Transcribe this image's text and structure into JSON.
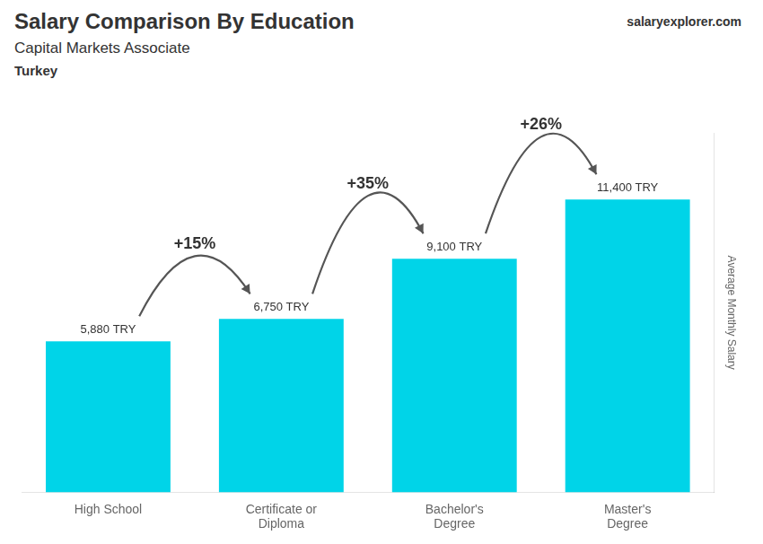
{
  "chart_data": {
    "type": "bar",
    "title": "Salary Comparison By Education",
    "subtitle": "Capital Markets Associate",
    "ylabel": "Average Monthly Salary",
    "categories": [
      "High School",
      "Certificate or\nDiploma",
      "Bachelor's\nDegree",
      "Master's\nDegree"
    ],
    "values": [
      5880,
      6750,
      9100,
      11400
    ],
    "value_labels": [
      "5,880 TRY",
      "6,750 TRY",
      "9,100 TRY",
      "11,400 TRY"
    ],
    "data_labels": true,
    "color": "#00d4e8",
    "ylim": [
      0,
      14000
    ],
    "grid": false,
    "tick_labels": "x",
    "annotations": [
      {
        "text": "Turkey"
      },
      {
        "text": "salaryexplorer.com"
      },
      {
        "text": "+15%",
        "from": "High School",
        "to": "Certificate or\nDiploma"
      },
      {
        "text": "+35%",
        "from": "Certificate or\nDiploma",
        "to": "Bachelor's\nDegree"
      },
      {
        "text": "+26%",
        "from": "Bachelor's\nDegree",
        "to": "Master's\nDegree"
      }
    ]
  }
}
